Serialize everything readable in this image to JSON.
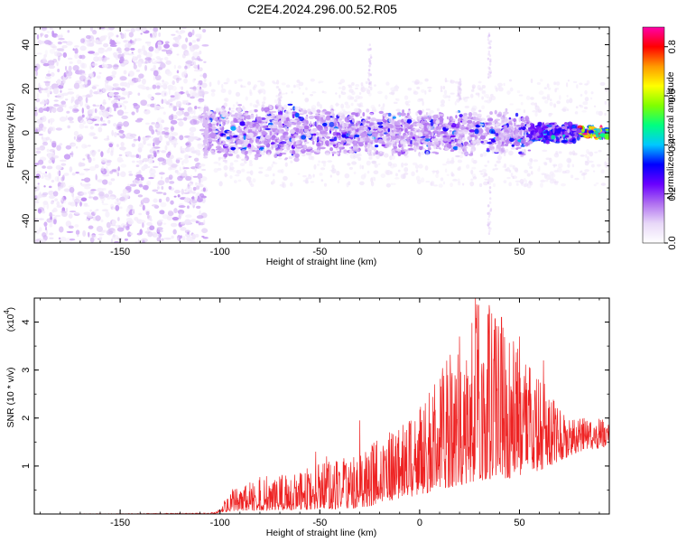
{
  "title": "C2E4.2024.296.00.52.R05",
  "chart_data": [
    {
      "type": "heatmap",
      "xlabel": "Height of straight line (km)",
      "ylabel": "Frequency (Hz)",
      "xlim": [
        -193,
        95
      ],
      "ylim": [
        -50,
        48
      ],
      "xticks": [
        -150,
        -100,
        -50,
        0,
        50
      ],
      "yticks": [
        -40,
        -20,
        0,
        20,
        40
      ],
      "colorbar": {
        "label": "Normalized spectral amplitude",
        "range": [
          0.0,
          0.88
        ],
        "ticks": [
          0.0,
          0.2,
          0.4,
          0.6,
          0.8
        ],
        "colors": [
          "#ffffff",
          "#e8d8f8",
          "#b070f0",
          "#6a00ff",
          "#0000ff",
          "#00c8ff",
          "#00ff80",
          "#80ff00",
          "#ffff00",
          "#ff9900",
          "#ff0000",
          "#ff00aa"
        ]
      },
      "regions": [
        {
          "x": [
            -193,
            -107
          ],
          "f": [
            -50,
            48
          ],
          "level": 0.05
        },
        {
          "x": [
            -107,
            -100
          ],
          "f": [
            -12,
            12
          ],
          "level": 0.08
        },
        {
          "x": [
            -100,
            -60
          ],
          "f": [
            -15,
            15
          ],
          "level": 0.12
        },
        {
          "x": [
            -60,
            -10
          ],
          "f": [
            -12,
            12
          ],
          "level": 0.15
        },
        {
          "x": [
            -10,
            55
          ],
          "f": [
            -10,
            10
          ],
          "level": 0.15
        },
        {
          "x": [
            55,
            80
          ],
          "f": [
            -5,
            4
          ],
          "level": 0.3
        },
        {
          "x": [
            80,
            95
          ],
          "f": [
            -3,
            3
          ],
          "level": 0.8
        }
      ]
    },
    {
      "type": "line",
      "xlabel": "Height of straight line (km)",
      "ylabel": "SNR (10 * v/v)",
      "yscale_label": "(x10",
      "yscale_exp": "4",
      "xlim": [
        -193,
        95
      ],
      "ylim": [
        0,
        4.5
      ],
      "xticks": [
        -150,
        -100,
        -50,
        0,
        50
      ],
      "yticks": [
        1,
        2,
        3,
        4
      ],
      "color": "#ee2222",
      "envelope": {
        "x": [
          -193,
          -105,
          -100,
          -95,
          -80,
          -60,
          -50,
          -40,
          -30,
          -20,
          -10,
          0,
          10,
          20,
          30,
          40,
          50,
          60,
          70,
          80,
          95
        ],
        "low": [
          0.0,
          0.0,
          0.02,
          0.05,
          0.08,
          0.08,
          0.1,
          0.1,
          0.12,
          0.2,
          0.3,
          0.4,
          0.5,
          0.6,
          0.7,
          0.7,
          0.8,
          0.9,
          1.1,
          1.3,
          1.4
        ],
        "high": [
          0.0,
          0.02,
          0.1,
          0.5,
          0.8,
          0.85,
          1.2,
          1.2,
          1.3,
          1.6,
          2.0,
          2.3,
          3.0,
          3.6,
          4.5,
          4.2,
          3.5,
          3.0,
          2.2,
          2.0,
          2.0
        ]
      },
      "peaks": [
        {
          "x": 28,
          "y": 4.5
        },
        {
          "x": 35,
          "y": 4.25
        },
        {
          "x": 41,
          "y": 4.1
        },
        {
          "x": 50,
          "y": 3.7
        },
        {
          "x": 20,
          "y": 3.7
        },
        {
          "x": 62,
          "y": 3.2
        },
        {
          "x": -30,
          "y": 1.95
        },
        {
          "x": -52,
          "y": 1.3
        }
      ]
    }
  ]
}
